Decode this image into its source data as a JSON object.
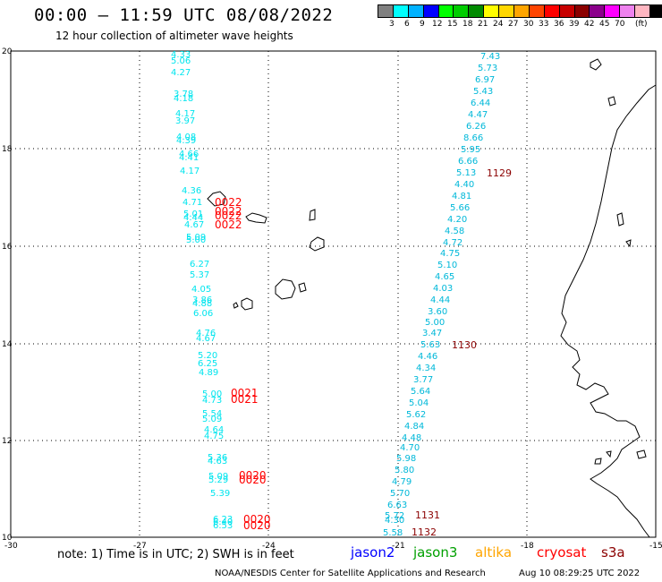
{
  "header": {
    "title": "00:00 – 11:59 UTC 08/08/2022",
    "subtitle": "12 hour collection of altimeter wave heights"
  },
  "legend": {
    "colors": [
      "#808080",
      "#00ffff",
      "#00b2ff",
      "#0000ff",
      "#00ff00",
      "#00cd00",
      "#008b00",
      "#ffff00",
      "#ffd700",
      "#ffa500",
      "#ff4500",
      "#ff0000",
      "#c80000",
      "#8b0000",
      "#8b008b",
      "#ff00ff",
      "#ee82ee",
      "#ffb6c1",
      "#000000"
    ],
    "labels": [
      "3",
      "6",
      "9",
      "12",
      "15",
      "18",
      "21",
      "24",
      "27",
      "30",
      "33",
      "36",
      "39",
      "42",
      "45",
      "70"
    ],
    "unit": "(ft)"
  },
  "axes": {
    "x_ticks": [
      "-30",
      "-27",
      "-24",
      "-21",
      "-18",
      "-15"
    ],
    "y_ticks": [
      "20",
      "18",
      "16",
      "14",
      "12",
      "10"
    ]
  },
  "passes": {
    "west": {
      "color": "#00e5ee",
      "values": [
        [
          "4.33",
          64
        ],
        [
          "5.06",
          71
        ],
        [
          "4.27",
          84
        ],
        [
          "3.78",
          108
        ],
        [
          "4.18",
          113
        ],
        [
          "4.17",
          130
        ],
        [
          "3.97",
          138
        ],
        [
          "4.08",
          156
        ],
        [
          "4.39",
          160
        ],
        [
          "4.66",
          175
        ],
        [
          "4.41",
          179
        ],
        [
          "4.17",
          194
        ],
        [
          "4.36",
          216
        ],
        [
          "4.71",
          229
        ],
        [
          "5.01",
          242
        ],
        [
          "4.44",
          246
        ],
        [
          "4.67",
          254
        ],
        [
          "5.09",
          268
        ],
        [
          "5.00",
          271
        ],
        [
          "6.27",
          298
        ],
        [
          "5.37",
          310
        ],
        [
          "4.05",
          326
        ],
        [
          "3.86",
          338
        ],
        [
          "4.88",
          342
        ],
        [
          "6.06",
          353
        ],
        [
          "4.76",
          375
        ],
        [
          "4.67",
          381
        ],
        [
          "5.20",
          400
        ],
        [
          "6.25",
          409
        ],
        [
          "4.89",
          419
        ],
        [
          "5.00",
          443
        ],
        [
          "4.73",
          450
        ],
        [
          "5.54",
          465
        ],
        [
          "5.09",
          471
        ],
        [
          "4.64",
          483
        ],
        [
          "4.75",
          490
        ],
        [
          "5.36",
          514
        ],
        [
          "4.63",
          518
        ],
        [
          "5.09",
          535
        ],
        [
          "5.29",
          539
        ],
        [
          "5.39",
          554
        ],
        [
          "6.23",
          583
        ],
        [
          "6.40",
          586
        ],
        [
          "6.53",
          590
        ]
      ],
      "x": [
        191,
        191,
        191,
        194,
        194,
        196,
        196,
        197,
        197,
        200,
        200,
        201,
        203,
        204,
        205,
        205,
        206,
        208,
        208,
        212,
        212,
        214,
        215,
        215,
        216,
        219,
        219,
        221,
        221,
        222,
        226,
        226,
        226,
        226,
        228,
        228,
        232,
        232,
        233,
        233,
        235,
        238,
        238,
        238
      ]
    },
    "east": {
      "color": "#00b8d9",
      "values": [
        [
          "7.43",
          66
        ],
        [
          "5.73",
          79
        ],
        [
          "6.97",
          92
        ],
        [
          "5.43",
          105
        ],
        [
          "6.44",
          118
        ],
        [
          "4.47",
          131
        ],
        [
          "6.26",
          144
        ],
        [
          "8.66",
          157
        ],
        [
          "5.95",
          170
        ],
        [
          "6.66",
          183
        ],
        [
          "5.13",
          196
        ],
        [
          "4.40",
          209
        ],
        [
          "4.81",
          222
        ],
        [
          "5.66",
          235
        ],
        [
          "4.20",
          248
        ],
        [
          "4.58",
          261
        ],
        [
          "4.72",
          274
        ],
        [
          "4.75",
          286
        ],
        [
          "5.10",
          299
        ],
        [
          "4.65",
          312
        ],
        [
          "4.03",
          325
        ],
        [
          "4.44",
          338
        ],
        [
          "3.60",
          351
        ],
        [
          "5.00",
          363
        ],
        [
          "3.47",
          375
        ],
        [
          "5.63",
          388
        ],
        [
          "4.46",
          401
        ],
        [
          "4.34",
          414
        ],
        [
          "3.77",
          427
        ],
        [
          "5.64",
          440
        ],
        [
          "5.04",
          453
        ],
        [
          "5.62",
          466
        ],
        [
          "4.84",
          479
        ],
        [
          "4.48",
          492
        ],
        [
          "4.70",
          503
        ],
        [
          "5.98",
          515
        ],
        [
          "5.80",
          528
        ],
        [
          "4.79",
          541
        ],
        [
          "5.70",
          554
        ],
        [
          "6.63",
          567
        ],
        [
          "5.72",
          579
        ],
        [
          "4.30",
          584
        ],
        [
          "5.58",
          598
        ]
      ],
      "x": [
        537,
        534,
        531,
        529,
        526,
        523,
        521,
        518,
        515,
        512,
        510,
        508,
        505,
        503,
        500,
        497,
        495,
        492,
        489,
        486,
        484,
        481,
        478,
        475,
        472,
        470,
        467,
        465,
        462,
        459,
        457,
        454,
        452,
        449,
        447,
        443,
        441,
        438,
        436,
        433,
        430,
        430,
        428
      ]
    }
  },
  "pass_times": {
    "red": {
      "color": "#ff0000",
      "items": [
        [
          "0022",
          230
        ],
        [
          "0022",
          240
        ],
        [
          "0022",
          245
        ],
        [
          "0022",
          255
        ],
        [
          "0021",
          443
        ],
        [
          "0021",
          450
        ],
        [
          "0020",
          535
        ],
        [
          "0020",
          540
        ],
        [
          "0020",
          584
        ],
        [
          "0020",
          591
        ]
      ],
      "x": [
        240,
        240,
        240,
        240,
        258,
        258,
        267,
        267,
        272,
        272
      ]
    },
    "dark": {
      "color": "#8b0000",
      "items": [
        [
          "1129",
          197
        ],
        [
          "1130",
          389
        ],
        [
          "1131",
          579
        ],
        [
          "1132",
          598
        ]
      ],
      "x": [
        544,
        505,
        464,
        460
      ]
    }
  },
  "footer": {
    "note": "note: 1) Time is in UTC; 2) SWH is in feet",
    "satellites": [
      {
        "name": "jason2",
        "color": "#0000ff"
      },
      {
        "name": "jason3",
        "color": "#00a000"
      },
      {
        "name": "altika",
        "color": "#ffa500"
      },
      {
        "name": "cryosat",
        "color": "#ff0000"
      },
      {
        "name": "s3a",
        "color": "#8b0000"
      }
    ],
    "credit": "NOAA/NESDIS Center for Satellite Applications and Research",
    "timestamp": "Aug 10 08:29:25 UTC 2022"
  }
}
